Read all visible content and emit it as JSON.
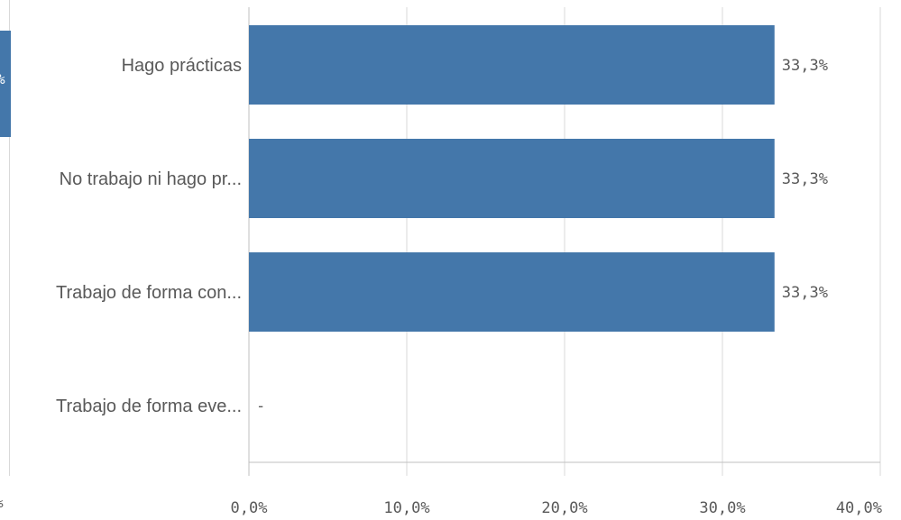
{
  "left_panel": {
    "bar_value_fragment": "%",
    "tick_fragment": "%"
  },
  "chart_data": {
    "type": "bar",
    "orientation": "horizontal",
    "categories": [
      "Hago prácticas",
      "No trabajo ni hago pr...",
      "Trabajo de forma con...",
      "Trabajo de forma eve..."
    ],
    "values": [
      33.3,
      33.3,
      33.3,
      null
    ],
    "value_labels": [
      "33,3%",
      "33,3%",
      "33,3%",
      "-"
    ],
    "xlim": [
      0,
      40
    ],
    "x_ticks": [
      0,
      10,
      20,
      30,
      40
    ],
    "x_tick_labels": [
      "0,0%",
      "10,0%",
      "20,0%",
      "30,0%",
      "40,0%"
    ],
    "grid": true,
    "bar_color": "#4477aa",
    "grid_color": "#d9d9d9",
    "text_color": "#595959",
    "title": "",
    "xlabel": "",
    "ylabel": ""
  }
}
